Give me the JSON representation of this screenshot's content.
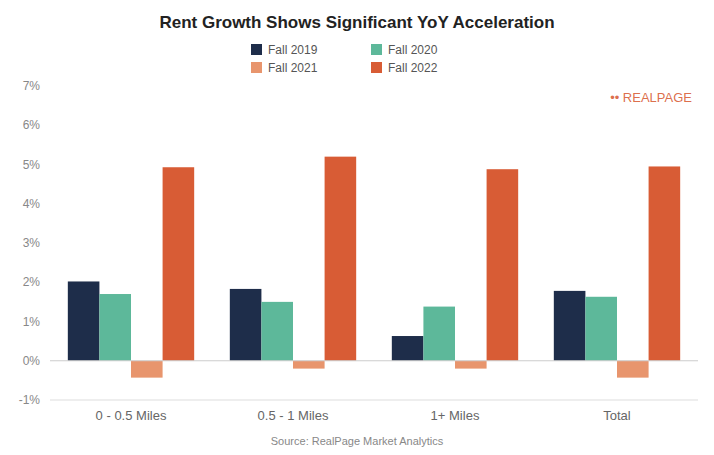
{
  "chart_data": {
    "type": "bar",
    "title": "Rent Growth Shows Significant YoY Acceleration",
    "subtitle": "Source: RealPage Market Analytics",
    "categories": [
      "0 - 0.5 Miles",
      "0.5 - 1 Miles",
      "1+ Miles",
      "Total"
    ],
    "series": [
      {
        "name": "Fall 2019",
        "color": "#1e2d4a",
        "values": [
          0.0202,
          0.0183,
          0.0063,
          0.0178
        ]
      },
      {
        "name": "Fall 2020",
        "color": "#5db89a",
        "values": [
          0.017,
          0.015,
          0.0138,
          0.0163
        ]
      },
      {
        "name": "Fall 2021",
        "color": "#e8956d",
        "values": [
          -0.0043,
          -0.002,
          -0.002,
          -0.0043
        ]
      },
      {
        "name": "Fall 2022",
        "color": "#d85c35",
        "values": [
          0.0493,
          0.052,
          0.0488,
          0.0495
        ]
      }
    ],
    "ylim": [
      -0.01,
      0.07
    ],
    "yticks": [
      {
        "value": -0.01,
        "label": "-1%"
      },
      {
        "value": 0.0,
        "label": "0%"
      },
      {
        "value": 0.01,
        "label": "1%"
      },
      {
        "value": 0.02,
        "label": "2%"
      },
      {
        "value": 0.03,
        "label": "3%"
      },
      {
        "value": 0.04,
        "label": "4%"
      },
      {
        "value": 0.05,
        "label": "5%"
      },
      {
        "value": 0.06,
        "label": "6%"
      },
      {
        "value": 0.07,
        "label": "7%"
      }
    ],
    "grid": false,
    "legend": "top",
    "annotations": [
      {
        "text": "•• REALPAGE",
        "color": "#d85c35"
      }
    ]
  }
}
